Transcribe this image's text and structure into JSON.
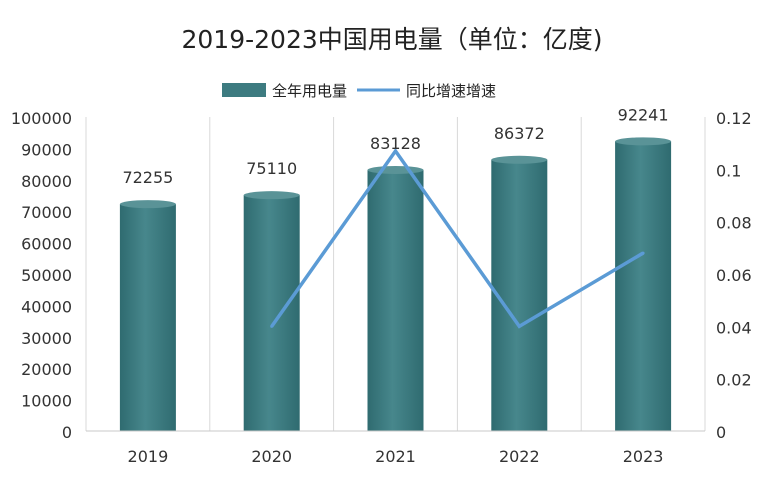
{
  "chart_data": {
    "type": "bar",
    "title": "2019-2023中国用电量（单位：亿度)",
    "categories": [
      "2019",
      "2020",
      "2021",
      "2022",
      "2023"
    ],
    "series": [
      {
        "name": "全年用电量",
        "type": "bar",
        "axis": "left",
        "values": [
          72255,
          75110,
          83128,
          86372,
          92241
        ],
        "color": "#3d7b80"
      },
      {
        "name": "同比增速增速",
        "type": "line",
        "axis": "right",
        "values": [
          null,
          0.04,
          0.107,
          0.04,
          0.068
        ],
        "color": "#5b9bd5"
      }
    ],
    "data_labels": [
      "72255",
      "75110",
      "83128",
      "86372",
      "92241"
    ],
    "y_left": {
      "ylim": [
        0,
        100000
      ],
      "ticks": [
        "0",
        "10000",
        "20000",
        "30000",
        "40000",
        "50000",
        "60000",
        "70000",
        "80000",
        "90000",
        "100000"
      ]
    },
    "y_right": {
      "ylim": [
        0,
        0.12
      ],
      "ticks": [
        "0",
        "0.02",
        "0.04",
        "0.06",
        "0.08",
        "0.1",
        "0.12"
      ]
    },
    "legend_position": "top-center",
    "grid": "vertical"
  }
}
